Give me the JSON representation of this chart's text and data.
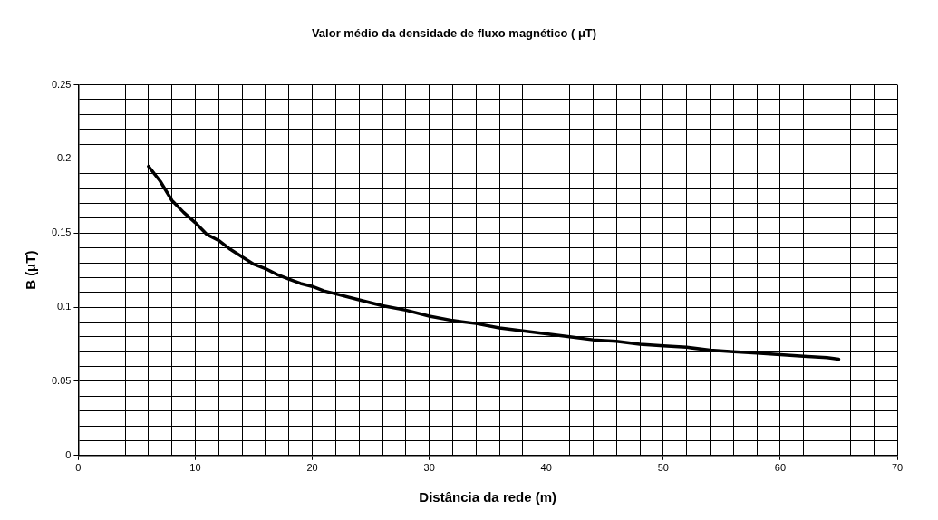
{
  "chart_data": {
    "type": "line",
    "title": "Valor médio da densidade de fluxo magnético ( μT)",
    "xlabel": "Distância da rede (m)",
    "ylabel": "B (μT)",
    "xlim": [
      0,
      70
    ],
    "ylim": [
      0,
      0.25
    ],
    "xticks": [
      0,
      {
        "value": 2,
        "label": null
      },
      {
        "value": 4,
        "label": null
      },
      {
        "value": 6,
        "label": null
      },
      {
        "value": 8,
        "label": null
      },
      10,
      {
        "value": 12,
        "label": null
      },
      {
        "value": 14,
        "label": null
      },
      {
        "value": 16,
        "label": null
      },
      {
        "value": 18,
        "label": null
      },
      20,
      {
        "value": 22,
        "label": null
      },
      {
        "value": 24,
        "label": null
      },
      {
        "value": 26,
        "label": null
      },
      {
        "value": 28,
        "label": null
      },
      30,
      {
        "value": 32,
        "label": null
      },
      {
        "value": 34,
        "label": null
      },
      {
        "value": 36,
        "label": null
      },
      {
        "value": 38,
        "label": null
      },
      40,
      {
        "value": 42,
        "label": null
      },
      {
        "value": 44,
        "label": null
      },
      {
        "value": 46,
        "label": null
      },
      {
        "value": 48,
        "label": null
      },
      50,
      {
        "value": 52,
        "label": null
      },
      {
        "value": 54,
        "label": null
      },
      {
        "value": 56,
        "label": null
      },
      {
        "value": 58,
        "label": null
      },
      60,
      {
        "value": 62,
        "label": null
      },
      {
        "value": 64,
        "label": null
      },
      {
        "value": 66,
        "label": null
      },
      {
        "value": 68,
        "label": null
      },
      70
    ],
    "yticks": [
      0,
      {
        "value": 0.01,
        "label": null
      },
      {
        "value": 0.02,
        "label": null
      },
      {
        "value": 0.03,
        "label": null
      },
      {
        "value": 0.04,
        "label": null
      },
      0.05,
      {
        "value": 0.06,
        "label": null
      },
      {
        "value": 0.07,
        "label": null
      },
      {
        "value": 0.08,
        "label": null
      },
      {
        "value": 0.09,
        "label": null
      },
      0.1,
      {
        "value": 0.11,
        "label": null
      },
      {
        "value": 0.12,
        "label": null
      },
      {
        "value": 0.13,
        "label": null
      },
      {
        "value": 0.14,
        "label": null
      },
      0.15,
      {
        "value": 0.16,
        "label": null
      },
      {
        "value": 0.17,
        "label": null
      },
      {
        "value": 0.18,
        "label": null
      },
      {
        "value": 0.19,
        "label": null
      },
      0.2,
      {
        "value": 0.21,
        "label": null
      },
      {
        "value": 0.22,
        "label": null
      },
      {
        "value": 0.23,
        "label": null
      },
      {
        "value": 0.24,
        "label": null
      },
      0.25
    ],
    "grid": true,
    "legend": false,
    "marker": "none",
    "line_style": "solid",
    "x": [
      6,
      7,
      8,
      9,
      10,
      11,
      12,
      13,
      14,
      15,
      16,
      17,
      18,
      19,
      20,
      21,
      22,
      24,
      26,
      28,
      30,
      32,
      34,
      36,
      38,
      40,
      42,
      44,
      46,
      48,
      50,
      52,
      54,
      56,
      58,
      60,
      62,
      64,
      65
    ],
    "series": [
      {
        "color": "#000000",
        "values": [
          0.195,
          0.185,
          0.172,
          0.164,
          0.157,
          0.149,
          0.145,
          0.139,
          0.134,
          0.129,
          0.126,
          0.122,
          0.119,
          0.116,
          0.114,
          0.111,
          0.109,
          0.105,
          0.101,
          0.098,
          0.094,
          0.091,
          0.089,
          0.086,
          0.084,
          0.082,
          0.08,
          0.078,
          0.077,
          0.075,
          0.074,
          0.073,
          0.071,
          0.07,
          0.069,
          0.068,
          0.067,
          0.066,
          0.065
        ]
      }
    ]
  }
}
